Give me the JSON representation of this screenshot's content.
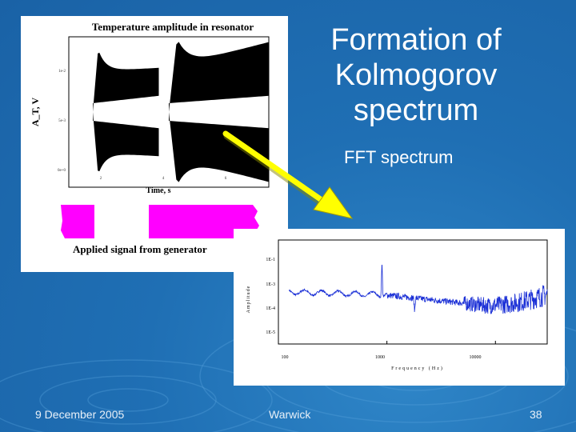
{
  "slide": {
    "title_lines": [
      "Formation of",
      "Kolmogorov",
      "spectrum"
    ],
    "fft_caption": "FFT spectrum",
    "footer": {
      "date": "9 December 2005",
      "place": "Warwick",
      "page": "38"
    }
  },
  "chart_data": [
    {
      "type": "line",
      "title": "Temperature amplitude in resonator",
      "xlabel": "Time, s",
      "ylabel": "A_T, V",
      "ytick_labels": [
        "1e-2",
        "5e-3",
        "0e+0"
      ],
      "xtick_labels": [
        "2",
        "4",
        "6"
      ],
      "signal_label": "Applied signal from generator",
      "bursts": [
        {
          "start": 0.12,
          "end": 0.45,
          "peak": 0.85,
          "settle": 0.55
        },
        {
          "start": 0.5,
          "end": 1.0,
          "peak": 0.98,
          "settle": 0.6
        }
      ]
    },
    {
      "type": "line",
      "xlabel": "Frequency (Hz)",
      "ylabel": "Amplitude",
      "xscale": "log",
      "yscale": "log",
      "xtick_labels": [
        "100",
        "1000",
        "10000"
      ],
      "ytick_labels": [
        "1E-1",
        "1E-3",
        "1E-4",
        "1E-5"
      ],
      "xlim": [
        100,
        30000
      ],
      "ylim_exp": [
        -5.6,
        -0.6
      ],
      "peaks": [
        {
          "freq": 900,
          "amp_exp": -1.6
        },
        {
          "freq": 1800,
          "amp_exp": -3.8
        }
      ],
      "series_color": "#1a2fd6"
    }
  ]
}
